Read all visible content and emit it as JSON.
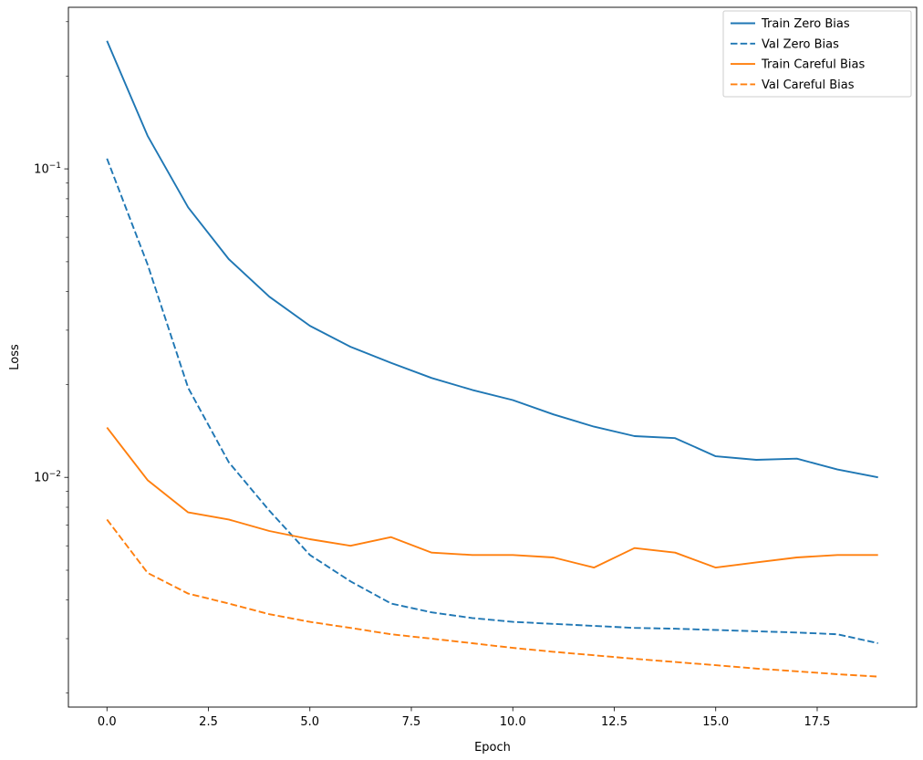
{
  "chart_data": {
    "type": "line",
    "title": "",
    "xlabel": "Epoch",
    "ylabel": "Loss",
    "x_scale": "linear",
    "y_scale": "log",
    "xlim": [
      -0.95,
      19.95
    ],
    "ylim": [
      0.0018,
      0.334
    ],
    "x_ticks": [
      0,
      2.5,
      5,
      7.5,
      10,
      12.5,
      15,
      17.5
    ],
    "x_tick_labels": [
      "0.0",
      "2.5",
      "5.0",
      "7.5",
      "10.0",
      "12.5",
      "15.0",
      "17.5"
    ],
    "y_major_ticks": [
      0.1,
      0.01
    ],
    "y_tick_labels": [
      "10^-1",
      "10^-2"
    ],
    "grid": false,
    "legend_position": "upper right",
    "x": [
      0,
      1,
      2,
      3,
      4,
      5,
      6,
      7,
      8,
      9,
      10,
      11,
      12,
      13,
      14,
      15,
      16,
      17,
      18,
      19
    ],
    "series": [
      {
        "name": "Train Zero Bias",
        "color": "#1f77b4",
        "style": "solid",
        "values": [
          0.26,
          0.128,
          0.075,
          0.051,
          0.0385,
          0.031,
          0.0265,
          0.0235,
          0.021,
          0.0192,
          0.0178,
          0.016,
          0.0146,
          0.0136,
          0.0134,
          0.0117,
          0.0114,
          0.0115,
          0.0106,
          0.01
        ]
      },
      {
        "name": "Val Zero Bias",
        "color": "#1f77b4",
        "style": "dashed",
        "values": [
          0.108,
          0.049,
          0.0195,
          0.0112,
          0.0078,
          0.0056,
          0.0046,
          0.0039,
          0.00365,
          0.0035,
          0.0034,
          0.00335,
          0.0033,
          0.00325,
          0.00323,
          0.0032,
          0.00317,
          0.00314,
          0.0031,
          0.0029
        ]
      },
      {
        "name": "Train Careful Bias",
        "color": "#ff7f0e",
        "style": "solid",
        "values": [
          0.0145,
          0.0098,
          0.0077,
          0.0073,
          0.0067,
          0.0063,
          0.006,
          0.0064,
          0.0057,
          0.0056,
          0.0056,
          0.0055,
          0.0051,
          0.0059,
          0.0057,
          0.0051,
          0.0053,
          0.0055,
          0.0056,
          0.0056
        ]
      },
      {
        "name": "Val Careful Bias",
        "color": "#ff7f0e",
        "style": "dashed",
        "values": [
          0.0073,
          0.0049,
          0.0042,
          0.0039,
          0.0036,
          0.0034,
          0.00325,
          0.0031,
          0.003,
          0.0029,
          0.0028,
          0.00272,
          0.00265,
          0.00258,
          0.00252,
          0.00246,
          0.0024,
          0.00235,
          0.0023,
          0.00226
        ]
      }
    ]
  }
}
